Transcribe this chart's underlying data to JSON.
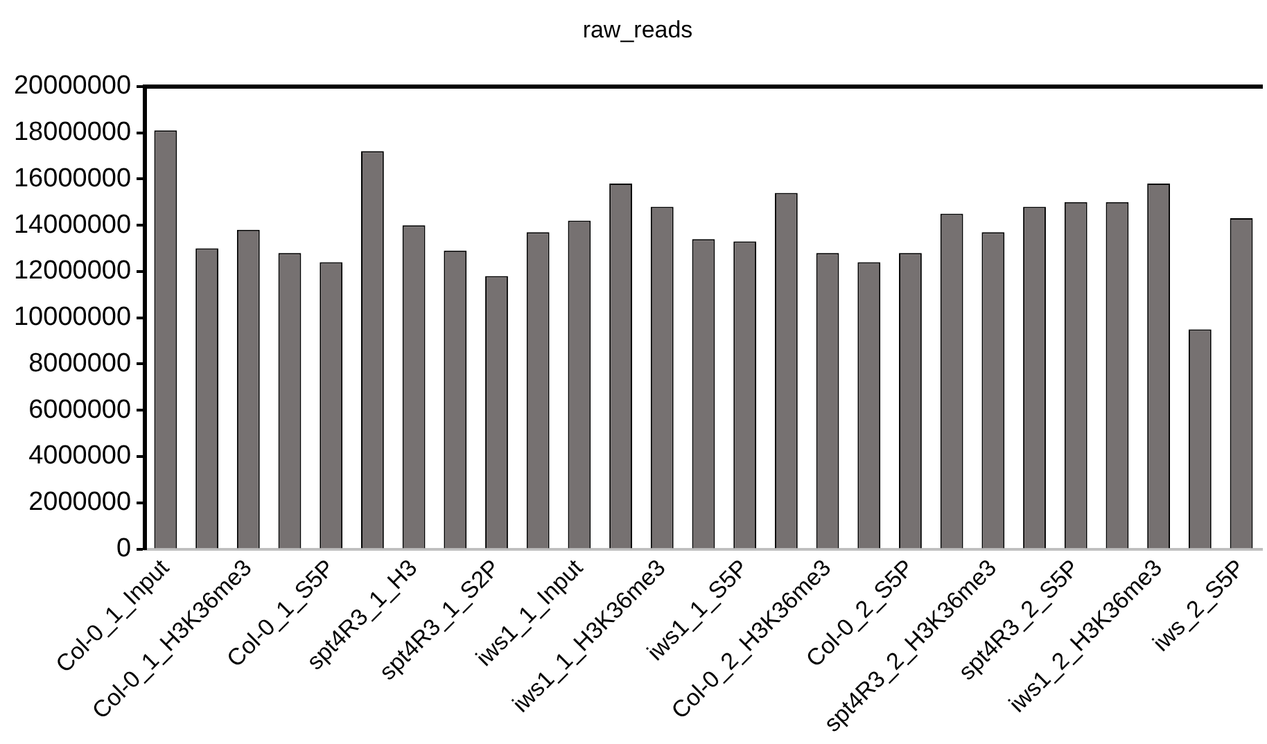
{
  "chart_data": {
    "type": "bar",
    "title": "raw_reads",
    "categories": [
      "Col-0_1_Input",
      null,
      "Col-0_1_H3K36me3",
      null,
      "Col-0_1_S5P",
      null,
      "spt4R3_1_H3",
      null,
      "spt4R3_1_S2P",
      null,
      "iws1_1_Input",
      null,
      "iws1_1_H3K36me3",
      null,
      "iws1_1_S5P",
      null,
      "Col-0_2_H3K36me3",
      null,
      "Col-0_2_S5P",
      null,
      "spt4R3_2_H3K36me3",
      null,
      "spt4R3_2_S5P",
      null,
      "iws1_2_H3K36me3",
      null,
      "iws_2_S5P"
    ],
    "values": [
      18100000,
      13000000,
      13800000,
      12800000,
      12400000,
      17200000,
      14000000,
      12900000,
      11800000,
      13700000,
      14200000,
      15800000,
      14800000,
      13400000,
      13300000,
      15400000,
      12800000,
      12400000,
      12800000,
      14500000,
      13700000,
      14800000,
      15000000,
      15000000,
      15800000,
      9500000,
      14300000
    ],
    "color": "#767171",
    "ylim": [
      0,
      20000000
    ],
    "yticks": [
      0,
      2000000,
      4000000,
      6000000,
      8000000,
      10000000,
      12000000,
      14000000,
      16000000,
      18000000,
      20000000
    ],
    "grid": false,
    "legend": false
  }
}
